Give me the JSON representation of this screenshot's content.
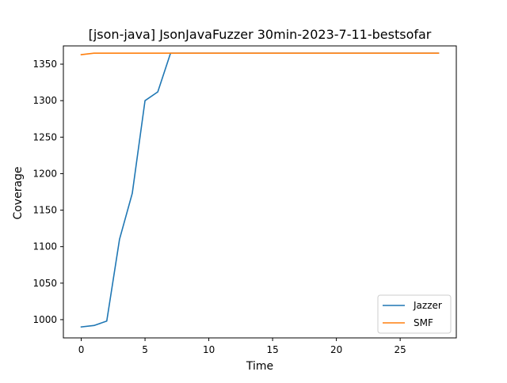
{
  "chart_data": {
    "type": "line",
    "title": "[json-java] JsonJavaFuzzer 30min-2023-7-11-bestsofar",
    "xlabel": "Time",
    "ylabel": "Coverage",
    "xlim": [
      -1.4,
      29.4
    ],
    "ylim": [
      975,
      1375
    ],
    "xticks": [
      0,
      5,
      10,
      15,
      20,
      25
    ],
    "yticks": [
      1000,
      1050,
      1100,
      1150,
      1200,
      1250,
      1300,
      1350
    ],
    "grid": false,
    "legend_position": "lower-right",
    "series": [
      {
        "name": "Jazzer",
        "color": "#1f77b4",
        "x": [
          0,
          1,
          2,
          3,
          4,
          5,
          6,
          7,
          8,
          9,
          10,
          11,
          12,
          13,
          14,
          15,
          16,
          17,
          18,
          19,
          20,
          21,
          22,
          23,
          24,
          25,
          26,
          27,
          28
        ],
        "y": [
          990,
          992,
          998,
          1110,
          1173,
          1300,
          1312,
          1365,
          1365,
          1365,
          1365,
          1365,
          1365,
          1365,
          1365,
          1365,
          1365,
          1365,
          1365,
          1365,
          1365,
          1365,
          1365,
          1365,
          1365,
          1365,
          1365,
          1365,
          1365
        ]
      },
      {
        "name": "SMF",
        "color": "#ff7f0e",
        "x": [
          0,
          1,
          2,
          3,
          4,
          5,
          6,
          7,
          8,
          9,
          10,
          11,
          12,
          13,
          14,
          15,
          16,
          17,
          18,
          19,
          20,
          21,
          22,
          23,
          24,
          25,
          26,
          27,
          28
        ],
        "y": [
          1363,
          1365,
          1365,
          1365,
          1365,
          1365,
          1365,
          1365,
          1365,
          1365,
          1365,
          1365,
          1365,
          1365,
          1365,
          1365,
          1365,
          1365,
          1365,
          1365,
          1365,
          1365,
          1365,
          1365,
          1365,
          1365,
          1365,
          1365,
          1365
        ]
      }
    ]
  }
}
